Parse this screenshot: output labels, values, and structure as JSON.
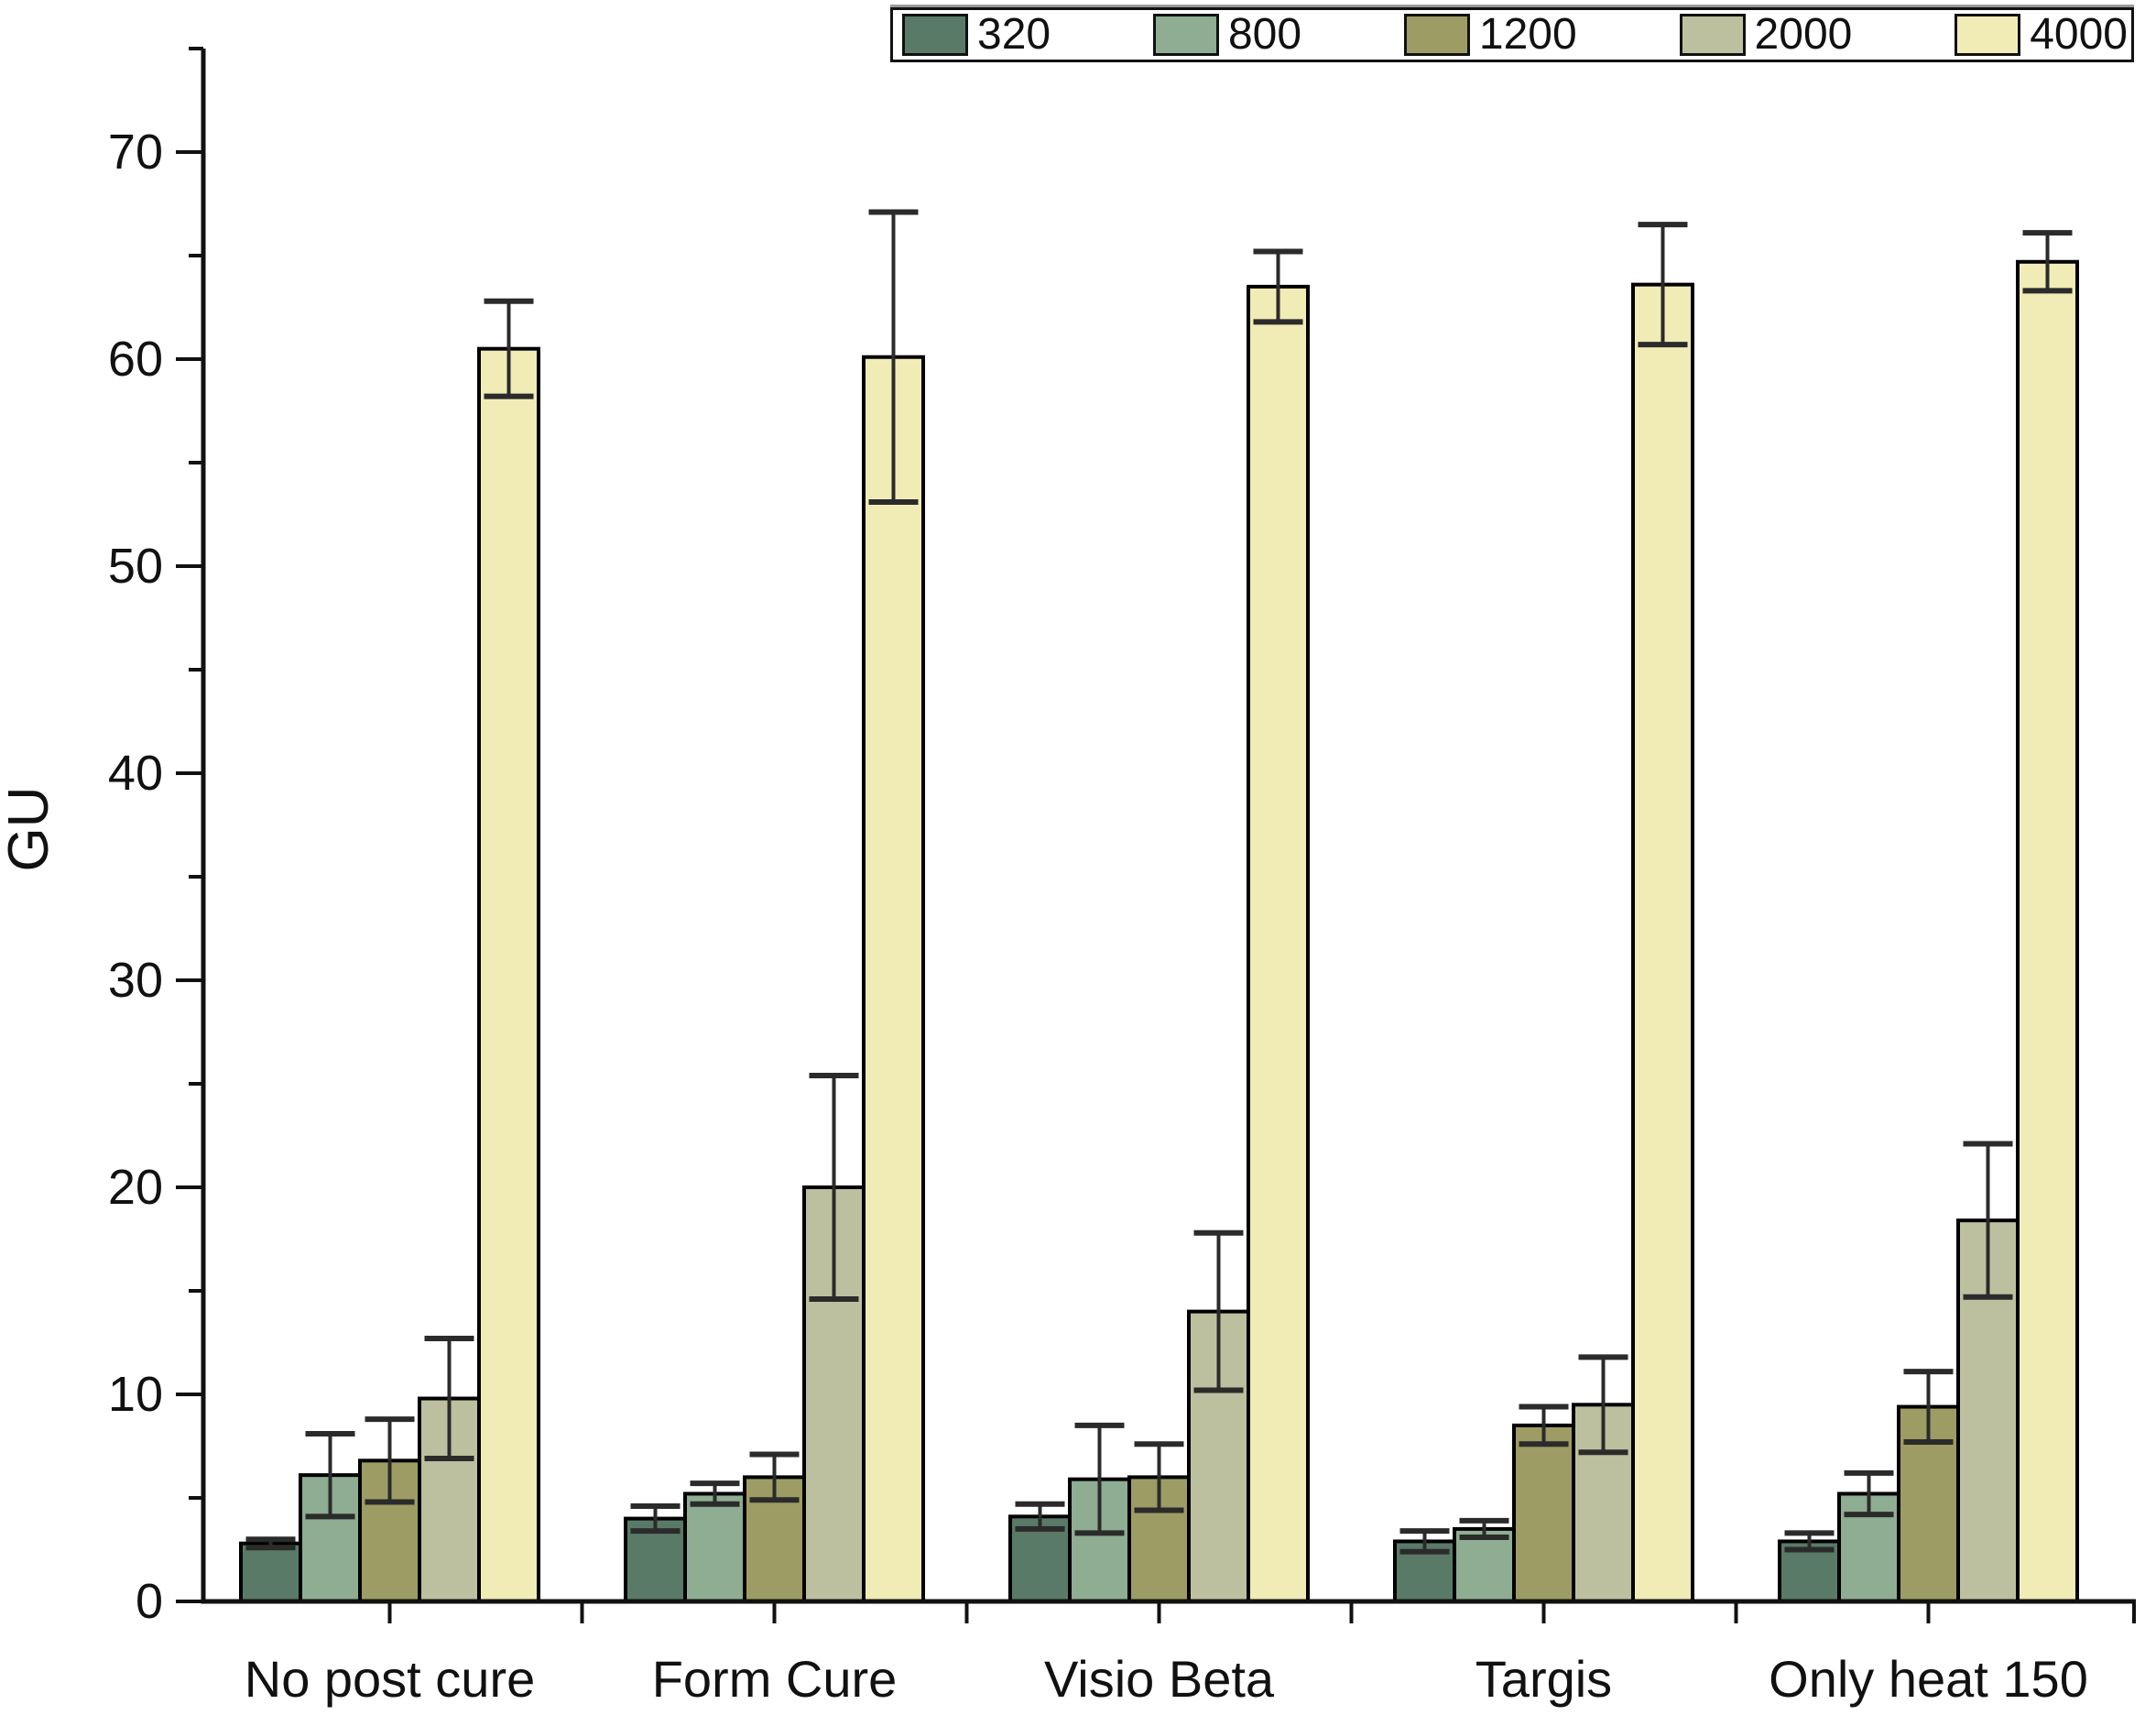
{
  "chart_data": {
    "type": "bar",
    "title": "",
    "xlabel": "",
    "ylabel": "GU",
    "ylim": [
      0,
      75
    ],
    "y_major_ticks": [
      0,
      10,
      20,
      30,
      40,
      50,
      60,
      70
    ],
    "y_minor_ticks": [
      5,
      15,
      25,
      35,
      45,
      55,
      65,
      75
    ],
    "grid": false,
    "legend_position": "top-right-horizontal",
    "error_bars": true,
    "categories": [
      "No post cure",
      "Form Cure",
      "Visio Beta",
      "Targis",
      "Only heat 150"
    ],
    "series": [
      {
        "name": "320",
        "color": "#5a7a68",
        "values": [
          2.8,
          4.0,
          4.1,
          2.9,
          2.9
        ],
        "errors": [
          0.2,
          0.6,
          0.6,
          0.5,
          0.4
        ]
      },
      {
        "name": "800",
        "color": "#8ead92",
        "values": [
          6.1,
          5.2,
          5.9,
          3.5,
          5.2
        ],
        "errors": [
          2.0,
          0.5,
          2.6,
          0.4,
          1.0
        ]
      },
      {
        "name": "1200",
        "color": "#9d9c64",
        "values": [
          6.8,
          6.0,
          6.0,
          8.5,
          9.4
        ],
        "errors": [
          2.0,
          1.1,
          1.6,
          0.9,
          1.7
        ]
      },
      {
        "name": "2000",
        "color": "#bdc09f",
        "values": [
          9.8,
          20.0,
          14.0,
          9.5,
          18.4
        ],
        "errors": [
          2.9,
          5.4,
          3.8,
          2.3,
          3.7
        ]
      },
      {
        "name": "4000",
        "color": "#f1ebb6",
        "values": [
          60.5,
          60.1,
          63.5,
          63.6,
          64.7
        ],
        "errors": [
          2.3,
          7.0,
          1.7,
          2.9,
          1.4
        ]
      }
    ],
    "axis_color": "#111111",
    "error_bar_color": "#2b2b2b"
  }
}
